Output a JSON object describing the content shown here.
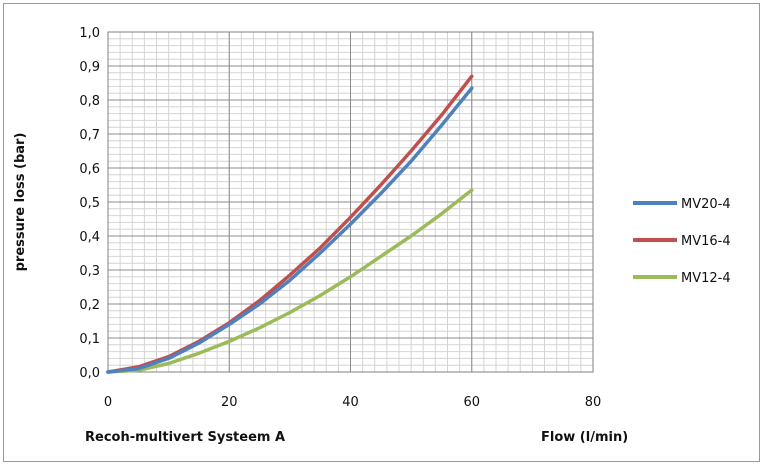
{
  "chart_data": {
    "type": "line",
    "title": "",
    "xlabel": "Flow (l/min)",
    "ylabel": "pressure loss  (bar)",
    "footer_label": "Recoh-multivert Systeem A",
    "xlim": [
      0,
      80
    ],
    "ylim": [
      0,
      1.0
    ],
    "x_ticks": [
      "0",
      "20",
      "40",
      "60",
      "80"
    ],
    "y_ticks": [
      "0,0",
      "0,1",
      "0,2",
      "0,3",
      "0,4",
      "0,5",
      "0,6",
      "0,7",
      "0,8",
      "0,9",
      "1,0"
    ],
    "grid": true,
    "legend_position": "right",
    "series": [
      {
        "name": "MV20-4",
        "color": "#4f81bd",
        "x": [
          0,
          5,
          10,
          15,
          20,
          25,
          30,
          35,
          40,
          45,
          50,
          55,
          60
        ],
        "y": [
          0.0,
          0.01,
          0.04,
          0.085,
          0.14,
          0.2,
          0.27,
          0.35,
          0.435,
          0.525,
          0.62,
          0.725,
          0.835
        ]
      },
      {
        "name": "MV16-4",
        "color": "#c0504d",
        "x": [
          0,
          5,
          10,
          15,
          20,
          25,
          30,
          35,
          40,
          45,
          50,
          55,
          60
        ],
        "y": [
          0.0,
          0.015,
          0.045,
          0.09,
          0.145,
          0.21,
          0.285,
          0.365,
          0.455,
          0.55,
          0.65,
          0.755,
          0.87
        ]
      },
      {
        "name": "MV12-4",
        "color": "#9bbb59",
        "x": [
          0,
          5,
          10,
          15,
          20,
          25,
          30,
          35,
          40,
          45,
          50,
          55,
          60
        ],
        "y": [
          0.0,
          0.005,
          0.025,
          0.055,
          0.09,
          0.13,
          0.175,
          0.225,
          0.28,
          0.34,
          0.4,
          0.465,
          0.535
        ]
      }
    ]
  }
}
